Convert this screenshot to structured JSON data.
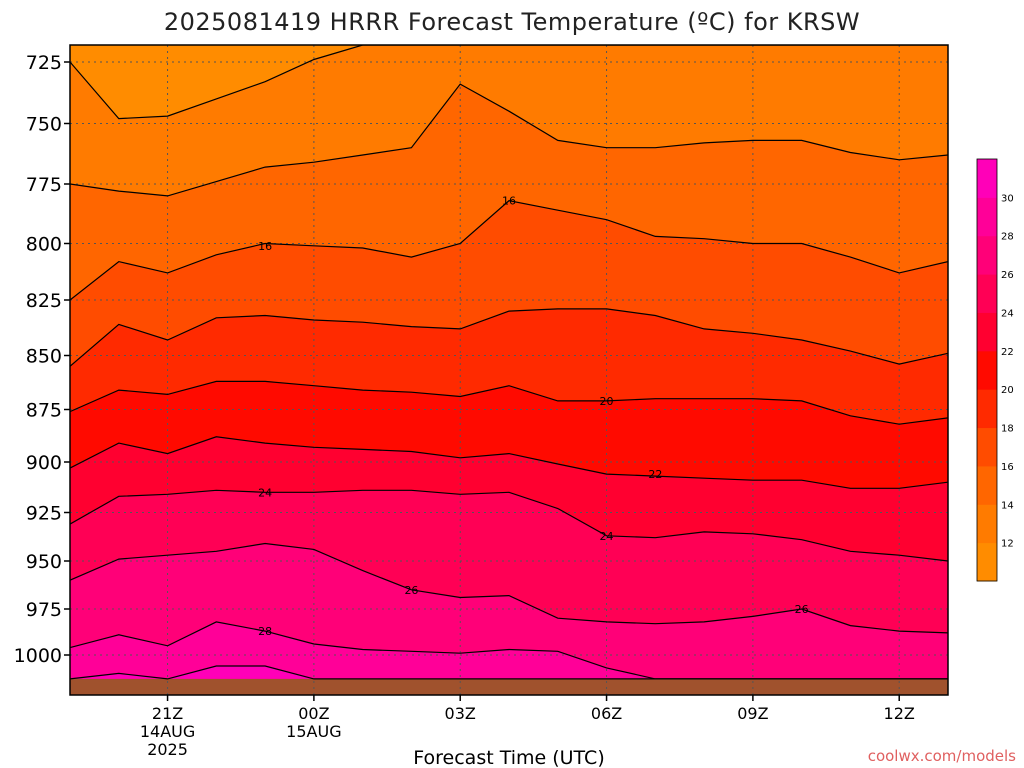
{
  "title": "2025081419 HRRR Forecast Temperature (ºC) for KRSW",
  "credit": "coolwx.com/models",
  "colors": {
    "bands": [
      "#ff8c00",
      "#ff7b00",
      "#ff6600",
      "#ff4c00",
      "#ff2a00",
      "#ff0a00",
      "#ff0030",
      "#ff0055",
      "#ff0078",
      "#ff0098",
      "#ff00b8",
      "#ff00d8"
    ],
    "ground": "#a0522d",
    "contour": "#000000",
    "grid": "#555555"
  },
  "chart_data": {
    "type": "heatmap",
    "title": "2025081419 HRRR Forecast Temperature (ºC) for KRSW",
    "xlabel": "Forecast Time (UTC)",
    "ylabel": "",
    "grid": true,
    "y_scale": "pressure (reversed)",
    "x": {
      "unit": "hours after 2025-08-14 19Z",
      "range": [
        0,
        18
      ],
      "ticks": [
        {
          "pos": 2,
          "label": "21Z",
          "sub1": "14AUG",
          "sub2": "2025"
        },
        {
          "pos": 5,
          "label": "00Z",
          "sub1": "15AUG",
          "sub2": ""
        },
        {
          "pos": 8,
          "label": "03Z",
          "sub1": "",
          "sub2": ""
        },
        {
          "pos": 11,
          "label": "06Z",
          "sub1": "",
          "sub2": ""
        },
        {
          "pos": 14,
          "label": "09Z",
          "sub1": "",
          "sub2": ""
        },
        {
          "pos": 17,
          "label": "12Z",
          "sub1": "",
          "sub2": ""
        }
      ]
    },
    "y": {
      "unit": "hPa",
      "range": [
        715,
        1013
      ],
      "ticks": [
        725,
        750,
        775,
        800,
        825,
        850,
        875,
        900,
        925,
        950,
        975,
        1000
      ]
    },
    "ground_level": 1013,
    "colorbar": {
      "levels": [
        10,
        12,
        14,
        16,
        18,
        20,
        22,
        24,
        26,
        28,
        30,
        32
      ],
      "labels": [
        "12",
        "14",
        "16",
        "18",
        "20",
        "22",
        "24",
        "26",
        "28",
        "30"
      ]
    },
    "contour_times": [
      0,
      1,
      2,
      3,
      4,
      5,
      6,
      7,
      8,
      9,
      10,
      11,
      12,
      13,
      14,
      15,
      16,
      17,
      18
    ],
    "contours": [
      {
        "level": 12,
        "pressure": [
          725,
          748,
          747,
          740,
          733,
          724,
          714,
          705,
          700,
          700,
          700,
          700,
          700,
          700,
          700,
          700,
          700,
          700,
          700
        ]
      },
      {
        "level": 14,
        "pressure": [
          775,
          778,
          780,
          774,
          768,
          766,
          763,
          760,
          734,
          745,
          757,
          760,
          760,
          758,
          757,
          757,
          762,
          765,
          763
        ]
      },
      {
        "level": 16,
        "pressure": [
          825,
          808,
          813,
          805,
          800,
          801,
          802,
          806,
          800,
          782,
          786,
          790,
          797,
          798,
          800,
          800,
          806,
          813,
          808
        ]
      },
      {
        "level": 18,
        "pressure": [
          855,
          836,
          843,
          833,
          832,
          834,
          835,
          837,
          838,
          830,
          829,
          829,
          832,
          838,
          840,
          843,
          848,
          854,
          849
        ]
      },
      {
        "level": 20,
        "pressure": [
          876,
          866,
          868,
          862,
          862,
          864,
          866,
          867,
          869,
          864,
          871,
          871,
          870,
          870,
          870,
          871,
          878,
          882,
          879
        ]
      },
      {
        "level": 22,
        "pressure": [
          903,
          891,
          896,
          888,
          891,
          893,
          894,
          895,
          898,
          896,
          901,
          906,
          907,
          908,
          909,
          909,
          913,
          913,
          910
        ]
      },
      {
        "level": 24,
        "pressure": [
          931,
          917,
          916,
          914,
          915,
          915,
          914,
          914,
          916,
          915,
          923,
          937,
          938,
          935,
          936,
          939,
          945,
          947,
          950
        ]
      },
      {
        "level": 26,
        "pressure": [
          960,
          949,
          947,
          945,
          941,
          944,
          955,
          965,
          969,
          968,
          980,
          982,
          983,
          982,
          979,
          975,
          984,
          987,
          988
        ]
      },
      {
        "level": 28,
        "pressure": [
          996,
          989,
          995,
          982,
          987,
          994,
          997,
          998,
          999,
          997,
          998,
          1007,
          1013,
          1013,
          1013,
          1013,
          1013,
          1013,
          1013
        ]
      },
      {
        "level": 30,
        "pressure": [
          1013,
          1010,
          1013,
          1006,
          1006,
          1013,
          1013,
          1013,
          1013,
          1013,
          1013,
          1013,
          1013,
          1013,
          1013,
          1013,
          1013,
          1013,
          1013
        ]
      }
    ],
    "contour_labels": [
      {
        "text": "16",
        "x": 4,
        "y": 801
      },
      {
        "text": "16",
        "x": 9,
        "y": 782
      },
      {
        "text": "20",
        "x": 11,
        "y": 871
      },
      {
        "text": "22",
        "x": 12,
        "y": 906
      },
      {
        "text": "24",
        "x": 4,
        "y": 915
      },
      {
        "text": "24",
        "x": 11,
        "y": 937
      },
      {
        "text": "26",
        "x": 7,
        "y": 965
      },
      {
        "text": "26",
        "x": 15,
        "y": 975
      },
      {
        "text": "28",
        "x": 4,
        "y": 987
      }
    ]
  }
}
